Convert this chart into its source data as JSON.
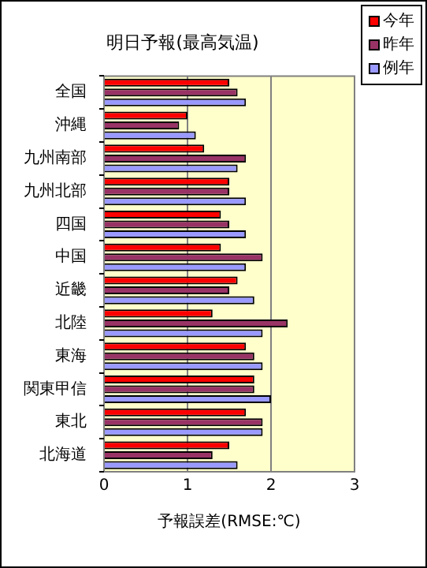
{
  "chart_data": {
    "type": "bar",
    "orientation": "horizontal",
    "title": "明日予報(最高気温)",
    "xlabel": "予報誤差(RMSE:℃)",
    "categories": [
      "全国",
      "沖縄",
      "九州南部",
      "九州北部",
      "四国",
      "中国",
      "近畿",
      "北陸",
      "東海",
      "関東甲信",
      "東北",
      "北海道"
    ],
    "series": [
      {
        "name": "今年",
        "color": "#ff0000",
        "values": [
          1.5,
          1.0,
          1.2,
          1.5,
          1.4,
          1.4,
          1.6,
          1.3,
          1.7,
          1.8,
          1.7,
          1.5
        ]
      },
      {
        "name": "昨年",
        "color": "#993366",
        "values": [
          1.6,
          0.9,
          1.7,
          1.5,
          1.5,
          1.9,
          1.5,
          2.2,
          1.8,
          1.8,
          1.9,
          1.3
        ]
      },
      {
        "name": "例年",
        "color": "#9999ff",
        "values": [
          1.7,
          1.1,
          1.6,
          1.7,
          1.7,
          1.7,
          1.8,
          1.9,
          1.9,
          2.0,
          1.9,
          1.6
        ]
      }
    ],
    "xlim": [
      0,
      3
    ],
    "xticks": [
      0,
      1,
      2,
      3
    ],
    "grid": "x",
    "legend": "top right"
  }
}
